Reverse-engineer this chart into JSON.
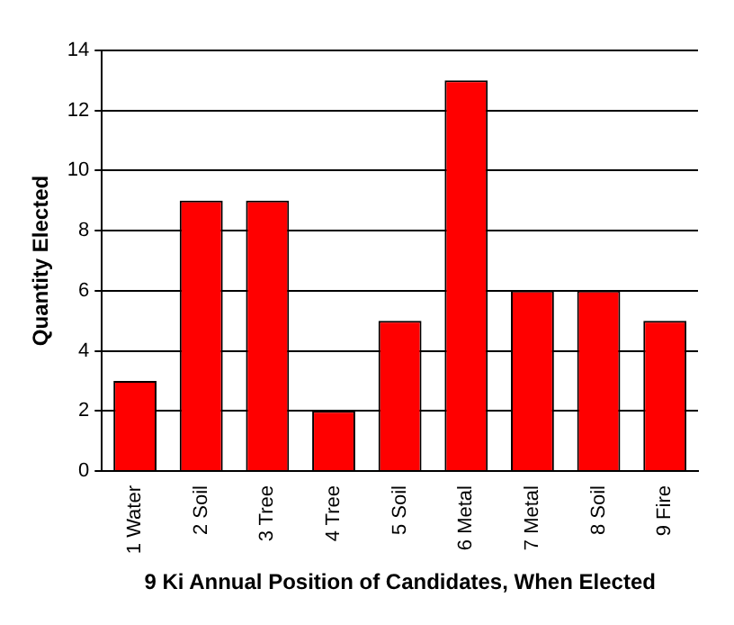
{
  "chart_data": {
    "type": "bar",
    "xlabel": "9 Ki Annual Position of Candidates, When Elected",
    "ylabel": "Quantity Elected",
    "categories": [
      "1 Water",
      "2 Soil",
      "3 Tree",
      "4 Tree",
      "5 Soil",
      "6 Metal",
      "7 Metal",
      "8 Soil",
      "9 Fire"
    ],
    "values": [
      3,
      9,
      9,
      2,
      5,
      13,
      6,
      6,
      5
    ],
    "color": "#ff0000",
    "ylim": [
      0,
      14
    ],
    "yticks": [
      0,
      2,
      4,
      6,
      8,
      10,
      12,
      14
    ],
    "grid": "y",
    "legend": false
  }
}
